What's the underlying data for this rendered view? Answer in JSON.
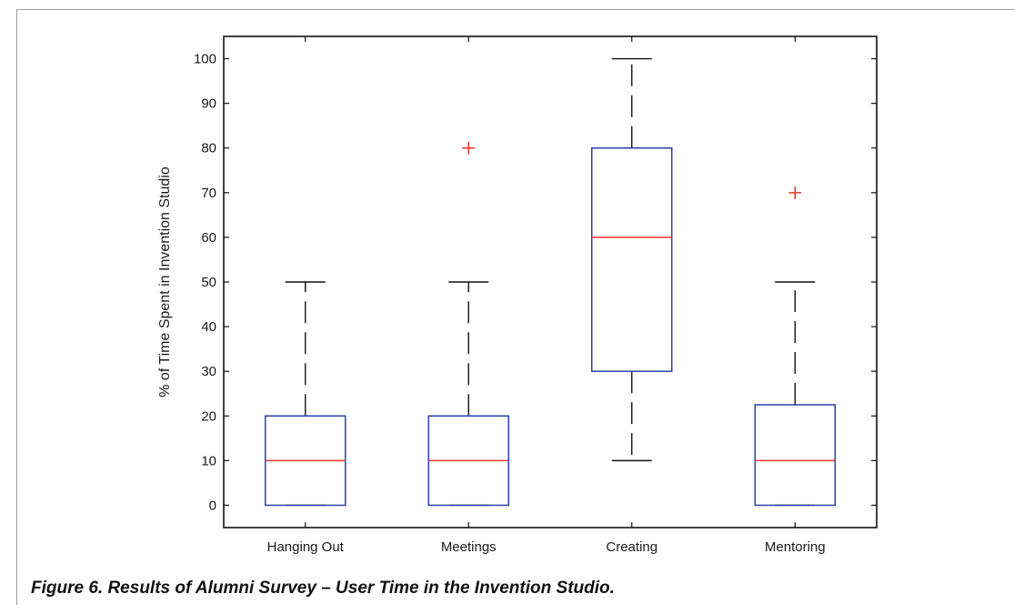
{
  "caption": "Figure 6. Results of Alumni Survey – User Time in the Invention Studio.",
  "chart_data": {
    "type": "box",
    "title": "",
    "xlabel": "",
    "ylabel": "% of Time Spent in Invention Studio",
    "ylim": [
      -5,
      105
    ],
    "yticks": [
      0,
      10,
      20,
      30,
      40,
      50,
      60,
      70,
      80,
      90,
      100
    ],
    "grid": false,
    "categories": [
      "Hanging Out",
      "Meetings",
      "Creating",
      "Mentoring"
    ],
    "boxes": [
      {
        "category": "Hanging Out",
        "whisker_low": 0,
        "q1": 0,
        "median": 10,
        "q3": 20,
        "whisker_high": 50,
        "outliers": []
      },
      {
        "category": "Meetings",
        "whisker_low": 0,
        "q1": 0,
        "median": 10,
        "q3": 20,
        "whisker_high": 50,
        "outliers": [
          80
        ]
      },
      {
        "category": "Creating",
        "whisker_low": 10,
        "q1": 30,
        "median": 60,
        "q3": 80,
        "whisker_high": 100,
        "outliers": []
      },
      {
        "category": "Mentoring",
        "whisker_low": 0,
        "q1": 0,
        "median": 10,
        "q3": 22.5,
        "whisker_high": 50,
        "outliers": [
          70
        ]
      }
    ],
    "colors": {
      "box": "#2b3fa8",
      "median": "#e8352b",
      "whisker": "#111111",
      "outlier": "#e8352b",
      "axes": "#111111"
    }
  }
}
